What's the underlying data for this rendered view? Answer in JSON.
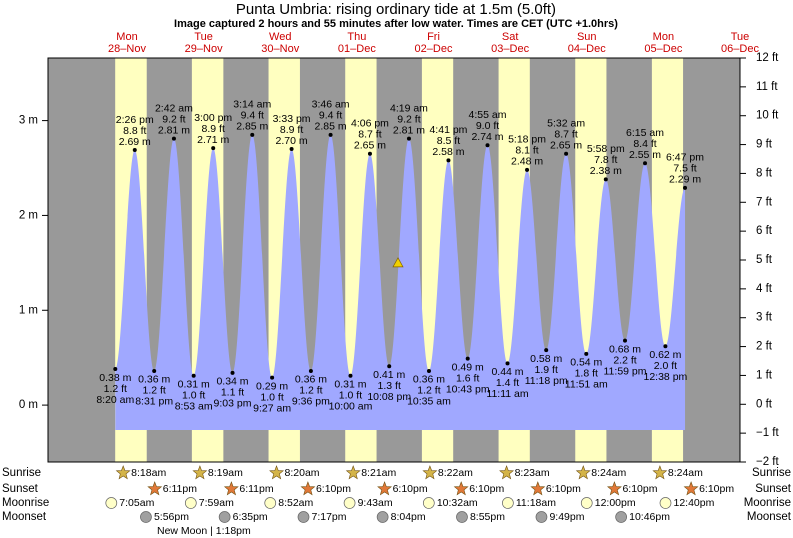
{
  "chart_data": {
    "type": "tide",
    "title": "Punta Umbria: rising  ordinary tide at 1.5m (5.0ft)",
    "subtitle": "Image captured 2 hours and 55 minutes after low water. Times are CET (UTC +1.0hrs)",
    "days": [
      {
        "weekday": "Mon",
        "date": "28–Nov"
      },
      {
        "weekday": "Tue",
        "date": "29–Nov"
      },
      {
        "weekday": "Wed",
        "date": "30–Nov"
      },
      {
        "weekday": "Thu",
        "date": "01–Dec"
      },
      {
        "weekday": "Fri",
        "date": "02–Dec"
      },
      {
        "weekday": "Sat",
        "date": "03–Dec"
      },
      {
        "weekday": "Sun",
        "date": "04–Dec"
      },
      {
        "weekday": "Mon",
        "date": "05–Dec"
      },
      {
        "weekday": "Tue",
        "date": "06–Dec"
      }
    ],
    "extremes": [
      {
        "kind": "low",
        "time": "8:20 am",
        "m": 0.38,
        "m_label": "0.38 m",
        "ft": 1.2,
        "ft_label": "1.2 ft"
      },
      {
        "kind": "high",
        "time": "2:26 pm",
        "m": 2.69,
        "m_label": "2.69 m",
        "ft": 8.8,
        "ft_label": "8.8 ft"
      },
      {
        "kind": "low",
        "time": "8:31 pm",
        "m": 0.36,
        "m_label": "0.36 m",
        "ft": 1.2,
        "ft_label": "1.2 ft"
      },
      {
        "kind": "high",
        "time": "2:42 am",
        "m": 2.81,
        "m_label": "2.81 m",
        "ft": 9.2,
        "ft_label": "9.2 ft"
      },
      {
        "kind": "low",
        "time": "8:53 am",
        "m": 0.31,
        "m_label": "0.31 m",
        "ft": 1.0,
        "ft_label": "1.0 ft"
      },
      {
        "kind": "high",
        "time": "3:00 pm",
        "m": 2.71,
        "m_label": "2.71 m",
        "ft": 8.9,
        "ft_label": "8.9 ft"
      },
      {
        "kind": "low",
        "time": "9:03 pm",
        "m": 0.34,
        "m_label": "0.34 m",
        "ft": 1.1,
        "ft_label": "1.1 ft"
      },
      {
        "kind": "high",
        "time": "3:14 am",
        "m": 2.85,
        "m_label": "2.85 m",
        "ft": 9.4,
        "ft_label": "9.4 ft"
      },
      {
        "kind": "low",
        "time": "9:27 am",
        "m": 0.29,
        "m_label": "0.29 m",
        "ft": 1.0,
        "ft_label": "1.0 ft"
      },
      {
        "kind": "high",
        "time": "3:33 pm",
        "m": 2.7,
        "m_label": "2.70 m",
        "ft": 8.9,
        "ft_label": "8.9 ft"
      },
      {
        "kind": "low",
        "time": "9:36 pm",
        "m": 0.36,
        "m_label": "0.36 m",
        "ft": 1.2,
        "ft_label": "1.2 ft"
      },
      {
        "kind": "high",
        "time": "3:46 am",
        "m": 2.85,
        "m_label": "2.85 m",
        "ft": 9.4,
        "ft_label": "9.4 ft"
      },
      {
        "kind": "low",
        "time": "10:00 am",
        "m": 0.31,
        "m_label": "0.31 m",
        "ft": 1.0,
        "ft_label": "1.0 ft"
      },
      {
        "kind": "high",
        "time": "4:06 pm",
        "m": 2.65,
        "m_label": "2.65 m",
        "ft": 8.7,
        "ft_label": "8.7 ft"
      },
      {
        "kind": "low",
        "time": "10:08 pm",
        "m": 0.41,
        "m_label": "0.41 m",
        "ft": 1.3,
        "ft_label": "1.3 ft"
      },
      {
        "kind": "high",
        "time": "4:19 am",
        "m": 2.81,
        "m_label": "2.81 m",
        "ft": 9.2,
        "ft_label": "9.2 ft"
      },
      {
        "kind": "low",
        "time": "10:35 am",
        "m": 0.36,
        "m_label": "0.36 m",
        "ft": 1.2,
        "ft_label": "1.2 ft"
      },
      {
        "kind": "high",
        "time": "4:41 pm",
        "m": 2.58,
        "m_label": "2.58 m",
        "ft": 8.5,
        "ft_label": "8.5 ft"
      },
      {
        "kind": "low",
        "time": "10:43 pm",
        "m": 0.49,
        "m_label": "0.49 m",
        "ft": 1.6,
        "ft_label": "1.6 ft"
      },
      {
        "kind": "high",
        "time": "4:55 am",
        "m": 2.74,
        "m_label": "2.74 m",
        "ft": 9.0,
        "ft_label": "9.0 ft"
      },
      {
        "kind": "low",
        "time": "11:11 am",
        "m": 0.44,
        "m_label": "0.44 m",
        "ft": 1.4,
        "ft_label": "1.4 ft"
      },
      {
        "kind": "high",
        "time": "5:18 pm",
        "m": 2.48,
        "m_label": "2.48 m",
        "ft": 8.1,
        "ft_label": "8.1 ft"
      },
      {
        "kind": "low",
        "time": "11:18 pm",
        "m": 0.58,
        "m_label": "0.58 m",
        "ft": 1.9,
        "ft_label": "1.9 ft"
      },
      {
        "kind": "high",
        "time": "5:32 am",
        "m": 2.65,
        "m_label": "2.65 m",
        "ft": 8.7,
        "ft_label": "8.7 ft"
      },
      {
        "kind": "low",
        "time": "11:51 am",
        "m": 0.54,
        "m_label": "0.54 m",
        "ft": 1.8,
        "ft_label": "1.8 ft"
      },
      {
        "kind": "high",
        "time": "5:58 pm",
        "m": 2.38,
        "m_label": "2.38 m",
        "ft": 7.8,
        "ft_label": "7.8 ft"
      },
      {
        "kind": "low",
        "time": "11:59 pm",
        "m": 0.68,
        "m_label": "0.68 m",
        "ft": 2.2,
        "ft_label": "2.2 ft"
      },
      {
        "kind": "high",
        "time": "6:15 am",
        "m": 2.55,
        "m_label": "2.55 m",
        "ft": 8.4,
        "ft_label": "8.4 ft"
      },
      {
        "kind": "low",
        "time": "12:38 pm",
        "m": 0.62,
        "m_label": "0.62 m",
        "ft": 2.0,
        "ft_label": "2.0 ft"
      },
      {
        "kind": "high",
        "time": "6:47 pm",
        "m": 2.29,
        "m_label": "2.29 m",
        "ft": 7.5,
        "ft_label": "7.5 ft"
      }
    ],
    "marker_level_m": 1.5,
    "ylim": [
      -0.6,
      3.66
    ],
    "yticks": [
      {
        "value": 0,
        "label": "0 m"
      },
      {
        "value": 1,
        "label": "1 m"
      },
      {
        "value": 2,
        "label": "2 m"
      },
      {
        "value": 3,
        "label": "3 m"
      }
    ],
    "y2lim": [
      -2,
      12
    ],
    "y2ticks": [
      {
        "value": -2,
        "label": "−2 ft"
      },
      {
        "value": -1,
        "label": "−1 ft"
      },
      {
        "value": 0,
        "label": "0 ft"
      },
      {
        "value": 1,
        "label": "1 ft"
      },
      {
        "value": 2,
        "label": "2 ft"
      },
      {
        "value": 3,
        "label": "3 ft"
      },
      {
        "value": 4,
        "label": "4 ft"
      },
      {
        "value": 5,
        "label": "5 ft"
      },
      {
        "value": 6,
        "label": "6 ft"
      },
      {
        "value": 7,
        "label": "7 ft"
      },
      {
        "value": 8,
        "label": "8 ft"
      },
      {
        "value": 9,
        "label": "9 ft"
      },
      {
        "value": 10,
        "label": "10 ft"
      },
      {
        "value": 11,
        "label": "11 ft"
      },
      {
        "value": 12,
        "label": "12 ft"
      }
    ],
    "colors": {
      "night": "#999999",
      "day": "#ffffc0",
      "water": "#a0a8ff",
      "day_label": "#cc0000"
    }
  },
  "almanac": {
    "row_labels": {
      "sunrise": "Sunrise",
      "sunset": "Sunset",
      "moonrise": "Moonrise",
      "moonset": "Moonset"
    },
    "sunrise": [
      "8:18am",
      "8:19am",
      "8:20am",
      "8:21am",
      "8:22am",
      "8:23am",
      "8:24am",
      "8:24am"
    ],
    "sunset": [
      "6:11pm",
      "6:11pm",
      "6:10pm",
      "6:10pm",
      "6:10pm",
      "6:10pm",
      "6:10pm",
      "6:10pm"
    ],
    "moonrise": [
      "7:05am",
      "7:59am",
      "8:52am",
      "9:43am",
      "10:32am",
      "11:18am",
      "12:00pm",
      "12:40pm"
    ],
    "moonset": [
      "5:56pm",
      "6:35pm",
      "7:17pm",
      "8:04pm",
      "8:55pm",
      "9:49pm",
      "10:46pm"
    ],
    "moon_phase": "New Moon | 1:18pm"
  }
}
